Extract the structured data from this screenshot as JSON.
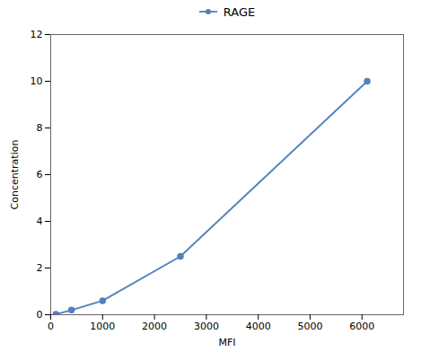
{
  "chart_data": {
    "type": "line",
    "xlabel": "MFI",
    "ylabel": "Concentration",
    "x": [
      100,
      400,
      1000,
      2500,
      6100
    ],
    "series": [
      {
        "name": "RAGE",
        "color": "#4f81bd",
        "marker": "circle",
        "values": [
          0.02,
          0.2,
          0.6,
          2.5,
          10.0
        ]
      }
    ],
    "xlim": [
      0,
      6800
    ],
    "ylim": [
      0,
      12
    ],
    "xticks": [
      0,
      1000,
      2000,
      3000,
      4000,
      5000,
      6000
    ],
    "yticks": [
      0,
      2,
      4,
      6,
      8,
      10,
      12
    ],
    "legend": "top"
  }
}
